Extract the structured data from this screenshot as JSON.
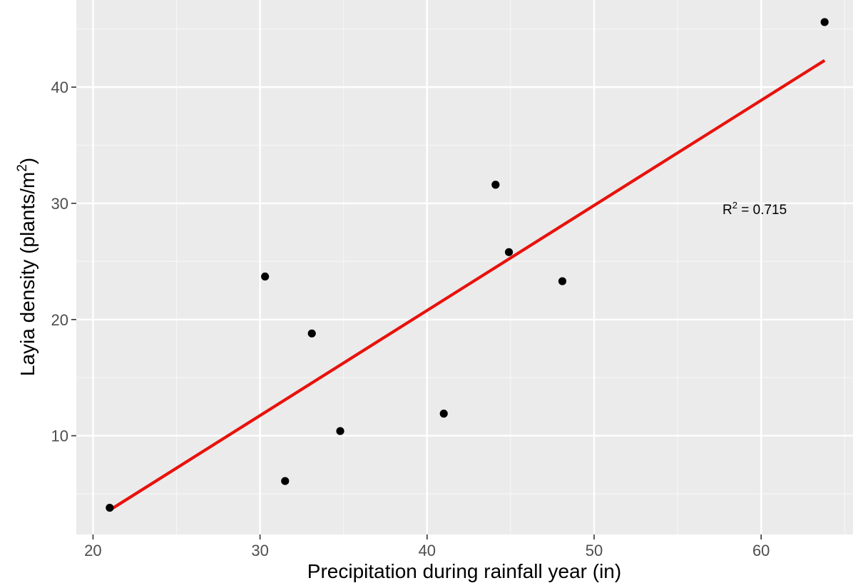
{
  "chart_data": {
    "type": "scatter",
    "title": "",
    "xlabel": "Precipitation during rainfall year (in)",
    "ylabel_main": "Layia density (plants/m",
    "ylabel_sup": "2",
    "ylabel_close": ")",
    "xlim": [
      19,
      65.5
    ],
    "ylim": [
      1.5,
      47.5
    ],
    "x_ticks": [
      20,
      30,
      40,
      50,
      60
    ],
    "y_ticks": [
      10,
      20,
      30,
      40
    ],
    "x_minor": [
      25,
      35,
      45,
      55,
      65
    ],
    "y_minor": [
      5,
      15,
      25,
      35,
      45
    ],
    "points": [
      {
        "x": 21.0,
        "y": 3.8
      },
      {
        "x": 30.3,
        "y": 23.7
      },
      {
        "x": 31.5,
        "y": 6.1
      },
      {
        "x": 33.1,
        "y": 18.8
      },
      {
        "x": 34.8,
        "y": 10.4
      },
      {
        "x": 41.0,
        "y": 11.9
      },
      {
        "x": 44.1,
        "y": 31.6
      },
      {
        "x": 44.9,
        "y": 25.8
      },
      {
        "x": 48.1,
        "y": 23.3
      },
      {
        "x": 63.8,
        "y": 45.6
      }
    ],
    "fit_line": {
      "x": [
        21.0,
        63.8
      ],
      "y": [
        3.6,
        42.3
      ]
    },
    "annotation": {
      "prefix": "R",
      "sup": "2",
      "suffix": " = 0.715",
      "x": 57.8,
      "y": 29.6
    },
    "colors": {
      "panel": "#ebebeb",
      "grid": "#ffffff",
      "point": "#000000",
      "line": "#e8120c",
      "tick_label": "#4d4d4d"
    },
    "grid": true
  }
}
